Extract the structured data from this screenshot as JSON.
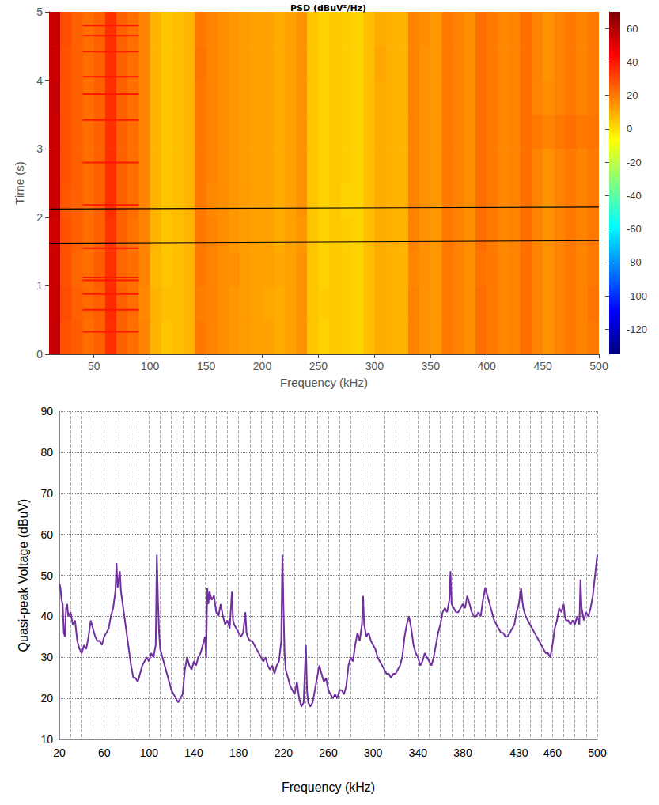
{
  "chart_data": [
    {
      "type": "heatmap",
      "title": "PSD (dBuV²/Hz)",
      "x_label": "Frequency (kHz)",
      "y_label": "Time (s)",
      "xlim": [
        10,
        500
      ],
      "xticks": [
        50,
        100,
        150,
        200,
        250,
        300,
        350,
        400,
        450,
        500
      ],
      "ylim": [
        0,
        5
      ],
      "yticks": [
        0,
        1,
        2,
        3,
        4,
        5
      ],
      "x_edges": [
        10,
        20,
        30,
        40,
        50,
        60,
        70,
        80,
        90,
        100,
        110,
        120,
        130,
        140,
        150,
        160,
        170,
        180,
        190,
        200,
        210,
        220,
        230,
        240,
        250,
        260,
        270,
        280,
        290,
        300,
        310,
        320,
        330,
        340,
        350,
        360,
        370,
        380,
        390,
        400,
        410,
        420,
        430,
        440,
        450,
        460,
        470,
        480,
        490,
        500
      ],
      "y_edges": [
        0,
        0.5,
        1,
        1.5,
        2,
        2.5,
        3,
        3.5,
        4,
        4.5,
        5
      ],
      "cells": [
        [
          56,
          28,
          26,
          22,
          25,
          35,
          25,
          22,
          18,
          8,
          5,
          6,
          8,
          20,
          18,
          16,
          14,
          13,
          12,
          12,
          10,
          12,
          15,
          5,
          2,
          4,
          3,
          2,
          6,
          10,
          9,
          8,
          18,
          15,
          14,
          20,
          18,
          16,
          22,
          20,
          17,
          18,
          22,
          18,
          15,
          18,
          20,
          18,
          20
        ],
        [
          55,
          29,
          25,
          23,
          25,
          36,
          25,
          22,
          17,
          8,
          6,
          6,
          8,
          19,
          18,
          16,
          14,
          13,
          12,
          11,
          10,
          12,
          15,
          5,
          3,
          4,
          3,
          2,
          6,
          10,
          9,
          8,
          18,
          15,
          14,
          20,
          18,
          16,
          22,
          20,
          17,
          18,
          22,
          18,
          15,
          18,
          20,
          18,
          21
        ],
        [
          55,
          28,
          24,
          22,
          26,
          35,
          24,
          22,
          18,
          7,
          5,
          6,
          8,
          20,
          18,
          16,
          15,
          13,
          12,
          12,
          11,
          12,
          15,
          5,
          2,
          4,
          3,
          2,
          6,
          10,
          9,
          8,
          17,
          15,
          14,
          20,
          18,
          16,
          21,
          20,
          17,
          18,
          22,
          18,
          15,
          18,
          20,
          18,
          20
        ],
        [
          54,
          28,
          25,
          22,
          25,
          34,
          25,
          21,
          18,
          8,
          5,
          6,
          8,
          20,
          18,
          16,
          14,
          13,
          12,
          12,
          10,
          12,
          14,
          5,
          2,
          4,
          3,
          2,
          6,
          10,
          9,
          8,
          18,
          15,
          14,
          20,
          18,
          16,
          22,
          20,
          17,
          18,
          22,
          18,
          15,
          18,
          20,
          18,
          20
        ],
        [
          55,
          27,
          25,
          22,
          25,
          35,
          25,
          22,
          18,
          8,
          5,
          6,
          8,
          20,
          17,
          16,
          14,
          13,
          12,
          12,
          10,
          12,
          15,
          5,
          2,
          4,
          2,
          2,
          6,
          10,
          9,
          8,
          18,
          15,
          14,
          20,
          18,
          16,
          22,
          20,
          17,
          18,
          22,
          18,
          15,
          18,
          20,
          18,
          20
        ],
        [
          55,
          28,
          25,
          22,
          25,
          35,
          25,
          22,
          18,
          8,
          5,
          6,
          8,
          20,
          18,
          16,
          14,
          13,
          12,
          12,
          10,
          12,
          15,
          5,
          2,
          4,
          3,
          2,
          6,
          10,
          9,
          8,
          18,
          15,
          14,
          20,
          18,
          16,
          22,
          20,
          17,
          18,
          22,
          18,
          15,
          18,
          20,
          18,
          20
        ],
        [
          55,
          28,
          25,
          22,
          25,
          35,
          25,
          22,
          18,
          8,
          5,
          6,
          8,
          20,
          18,
          16,
          14,
          13,
          12,
          12,
          10,
          12,
          15,
          5,
          2,
          4,
          3,
          2,
          6,
          10,
          9,
          8,
          18,
          15,
          14,
          20,
          18,
          16,
          22,
          20,
          17,
          18,
          22,
          20,
          18,
          20,
          22,
          20,
          21
        ],
        [
          56,
          28,
          25,
          22,
          25,
          35,
          25,
          22,
          18,
          8,
          5,
          6,
          8,
          20,
          18,
          16,
          14,
          13,
          12,
          12,
          10,
          12,
          15,
          5,
          2,
          4,
          3,
          2,
          6,
          10,
          9,
          8,
          18,
          15,
          14,
          20,
          18,
          16,
          22,
          20,
          17,
          18,
          22,
          18,
          16,
          18,
          20,
          18,
          20
        ],
        [
          55,
          28,
          25,
          22,
          25,
          35,
          25,
          22,
          18,
          8,
          5,
          6,
          8,
          21,
          18,
          16,
          14,
          13,
          12,
          12,
          10,
          12,
          15,
          5,
          2,
          4,
          3,
          2,
          6,
          11,
          9,
          8,
          18,
          15,
          14,
          20,
          18,
          16,
          22,
          20,
          17,
          18,
          22,
          18,
          15,
          18,
          20,
          18,
          20
        ],
        [
          55,
          29,
          25,
          22,
          25,
          35,
          25,
          22,
          18,
          8,
          5,
          6,
          8,
          20,
          18,
          16,
          14,
          13,
          12,
          12,
          10,
          12,
          15,
          5,
          2,
          4,
          3,
          2,
          6,
          10,
          9,
          8,
          18,
          16,
          14,
          20,
          18,
          16,
          22,
          20,
          17,
          18,
          22,
          18,
          15,
          18,
          20,
          18,
          20
        ]
      ],
      "colorbar": {
        "range": [
          -135,
          70
        ],
        "ticks": [
          -120,
          -100,
          -80,
          -60,
          -40,
          -20,
          0,
          20,
          40,
          60
        ]
      },
      "streaks": {
        "times": [
          0.33,
          0.65,
          0.88,
          1.08,
          1.12,
          1.55,
          2.18,
          2.8,
          3.42,
          3.8,
          4.05,
          4.42,
          4.65,
          4.8
        ],
        "x_from": 40,
        "x_to": 90,
        "value": 40
      },
      "lines": [
        {
          "x": [
            10,
            500
          ],
          "y": [
            2.12,
            2.15
          ],
          "color": "#000000"
        },
        {
          "x": [
            10,
            500
          ],
          "y": [
            1.62,
            1.66
          ],
          "color": "#000000"
        }
      ]
    },
    {
      "type": "line",
      "x_label": "Frequency (kHz)",
      "y_label": "Quasi-peak Voltage (dBuV)",
      "xlim": [
        20,
        500
      ],
      "xticks": [
        20,
        60,
        100,
        140,
        180,
        220,
        260,
        300,
        340,
        380,
        430,
        460,
        500
      ],
      "ylim": [
        10,
        90
      ],
      "yticks": [
        10,
        20,
        30,
        40,
        50,
        60,
        70,
        80,
        90
      ],
      "grid": true,
      "color": "#7030a0",
      "x": [
        20,
        21,
        22,
        23,
        24,
        25,
        26,
        27,
        28,
        30,
        32,
        34,
        36,
        38,
        40,
        42,
        44,
        46,
        48,
        50,
        52,
        54,
        56,
        58,
        60,
        62,
        64,
        66,
        68,
        70,
        71,
        72,
        73,
        74,
        75,
        76,
        78,
        80,
        82,
        84,
        86,
        88,
        90,
        92,
        94,
        96,
        98,
        100,
        102,
        104,
        106,
        107,
        108,
        109,
        110,
        112,
        114,
        116,
        118,
        120,
        122,
        124,
        126,
        128,
        130,
        132,
        134,
        136,
        138,
        140,
        142,
        144,
        146,
        148,
        150,
        151,
        152,
        153,
        154,
        156,
        158,
        160,
        162,
        164,
        166,
        168,
        170,
        172,
        174,
        175,
        176,
        178,
        180,
        182,
        184,
        186,
        187,
        188,
        190,
        192,
        194,
        196,
        198,
        200,
        202,
        204,
        206,
        208,
        210,
        212,
        214,
        216,
        218,
        219,
        220,
        221,
        222,
        224,
        226,
        228,
        230,
        232,
        234,
        236,
        238,
        240,
        241,
        242,
        244,
        246,
        248,
        250,
        252,
        254,
        256,
        258,
        260,
        262,
        264,
        266,
        268,
        270,
        272,
        274,
        276,
        278,
        280,
        282,
        284,
        286,
        288,
        290,
        291,
        292,
        294,
        296,
        298,
        300,
        302,
        304,
        306,
        308,
        310,
        312,
        314,
        316,
        318,
        320,
        322,
        324,
        326,
        328,
        330,
        332,
        334,
        336,
        338,
        340,
        342,
        344,
        346,
        348,
        350,
        352,
        354,
        356,
        358,
        360,
        362,
        364,
        366,
        368,
        369,
        370,
        372,
        374,
        376,
        378,
        380,
        382,
        384,
        386,
        388,
        390,
        392,
        394,
        396,
        398,
        400,
        402,
        404,
        406,
        408,
        410,
        412,
        414,
        416,
        418,
        420,
        422,
        424,
        426,
        428,
        430,
        432,
        433,
        434,
        436,
        438,
        440,
        442,
        444,
        446,
        448,
        450,
        452,
        454,
        456,
        458,
        460,
        462,
        464,
        466,
        468,
        470,
        471,
        472,
        474,
        476,
        478,
        480,
        482,
        484,
        485,
        486,
        488,
        490,
        492,
        494,
        496,
        498,
        500
      ],
      "values": [
        48,
        47,
        44,
        43,
        36,
        35,
        42,
        43,
        40,
        41,
        38,
        39,
        34,
        32,
        31,
        33,
        32,
        35,
        39,
        37,
        35,
        34,
        34,
        33,
        35,
        36,
        37,
        40,
        42,
        46,
        53,
        47,
        49,
        51,
        46,
        44,
        40,
        36,
        32,
        28,
        25,
        25,
        24,
        26,
        28,
        29,
        30,
        29,
        31,
        30,
        33,
        55,
        44,
        36,
        32,
        30,
        28,
        26,
        24,
        22,
        21,
        20,
        19,
        20,
        21,
        27,
        30,
        28,
        27,
        29,
        28,
        30,
        31,
        33,
        35,
        30,
        47,
        43,
        46,
        44,
        45,
        41,
        40,
        43,
        40,
        38,
        39,
        37,
        46,
        39,
        38,
        37,
        36,
        35,
        36,
        41,
        36,
        35,
        34,
        34,
        33,
        32,
        31,
        30,
        29,
        30,
        28,
        27,
        28,
        26,
        28,
        29,
        34,
        55,
        42,
        31,
        27,
        25,
        23,
        22,
        21,
        24,
        20,
        18,
        19,
        33,
        22,
        19,
        18,
        19,
        22,
        25,
        28,
        26,
        24,
        25,
        22,
        21,
        20,
        21,
        20,
        22,
        22,
        21,
        23,
        28,
        30,
        29,
        33,
        36,
        34,
        38,
        45,
        38,
        35,
        36,
        34,
        33,
        32,
        30,
        29,
        28,
        27,
        26,
        26,
        25,
        26,
        26,
        27,
        28,
        30,
        35,
        38,
        40,
        37,
        33,
        31,
        30,
        28,
        29,
        31,
        30,
        29,
        28,
        30,
        33,
        36,
        38,
        41,
        42,
        41,
        44,
        51,
        43,
        42,
        41,
        41,
        42,
        43,
        42,
        45,
        43,
        41,
        40,
        40,
        41,
        40,
        44,
        47,
        45,
        43,
        41,
        39,
        38,
        37,
        36,
        36,
        35,
        35,
        36,
        37,
        38,
        41,
        43,
        47,
        44,
        42,
        40,
        39,
        38,
        37,
        36,
        35,
        34,
        33,
        32,
        31,
        31,
        30,
        33,
        37,
        39,
        42,
        41,
        43,
        40,
        39,
        39,
        38,
        39,
        38,
        40,
        38,
        49,
        42,
        39,
        41,
        40,
        42,
        45,
        50,
        55
      ]
    }
  ]
}
